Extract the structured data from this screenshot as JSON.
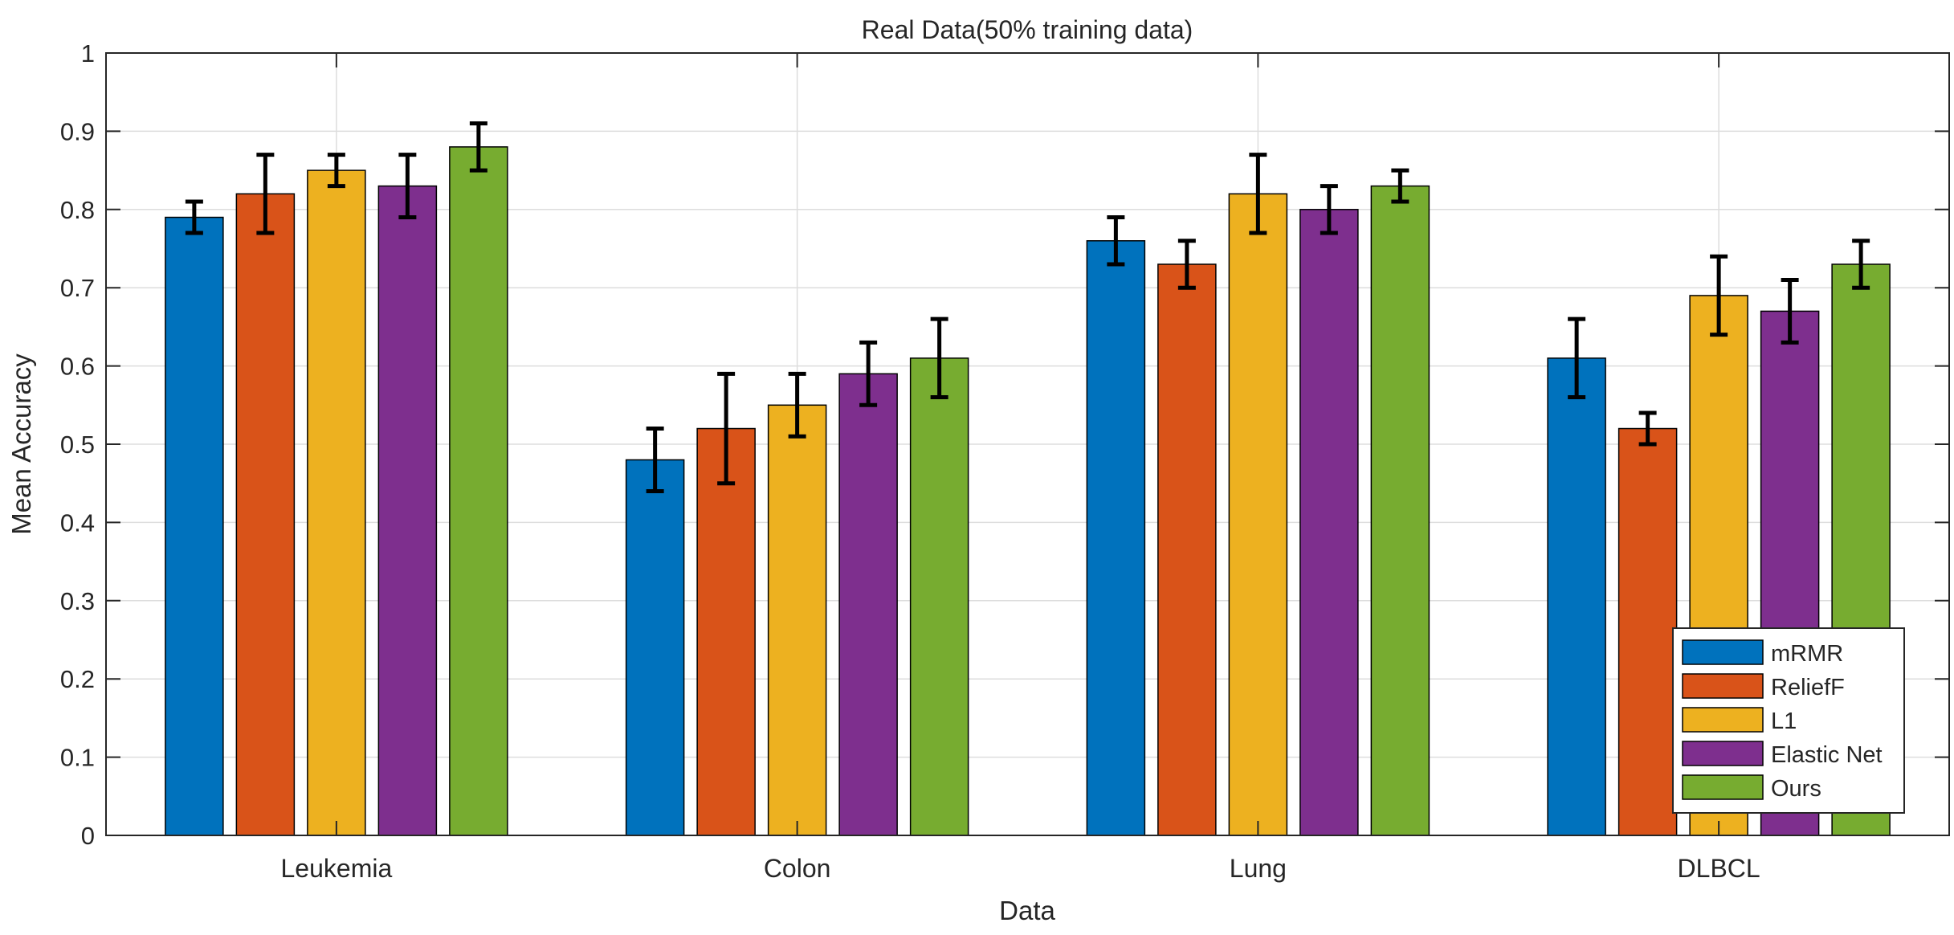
{
  "chart_data": {
    "type": "bar",
    "title": "Real Data(50% training data)",
    "xlabel": "Data",
    "ylabel": "Mean Accuracy",
    "ylim": [
      0,
      1
    ],
    "yticks": [
      "0",
      "0.1",
      "0.2",
      "0.3",
      "0.4",
      "0.5",
      "0.6",
      "0.7",
      "0.8",
      "0.9",
      "1"
    ],
    "grid": true,
    "legend_position": "bottom-right",
    "categories": [
      "Leukemia",
      "Colon",
      "Lung",
      "DLBCL"
    ],
    "series": [
      {
        "name": "mRMR",
        "color": "#0072BD",
        "values": [
          0.79,
          0.48,
          0.76,
          0.61
        ],
        "errors": [
          0.02,
          0.04,
          0.03,
          0.05
        ]
      },
      {
        "name": "ReliefF",
        "color": "#D95319",
        "values": [
          0.82,
          0.52,
          0.73,
          0.52
        ],
        "errors": [
          0.05,
          0.07,
          0.03,
          0.02
        ]
      },
      {
        "name": "L1",
        "color": "#EDB120",
        "values": [
          0.85,
          0.55,
          0.82,
          0.69
        ],
        "errors": [
          0.02,
          0.04,
          0.05,
          0.05
        ]
      },
      {
        "name": "Elastic Net",
        "color": "#7E2F8E",
        "values": [
          0.83,
          0.59,
          0.8,
          0.67
        ],
        "errors": [
          0.04,
          0.04,
          0.03,
          0.04
        ]
      },
      {
        "name": "Ours",
        "color": "#77AC30",
        "values": [
          0.88,
          0.61,
          0.83,
          0.73
        ],
        "errors": [
          0.03,
          0.05,
          0.02,
          0.03
        ]
      }
    ]
  }
}
